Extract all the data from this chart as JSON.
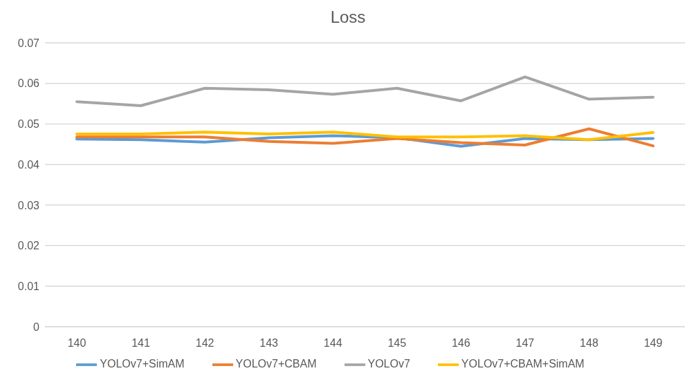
{
  "chart_data": {
    "type": "line",
    "title": "Loss",
    "categories": [
      "140",
      "141",
      "142",
      "143",
      "144",
      "145",
      "146",
      "147",
      "148",
      "149"
    ],
    "series": [
      {
        "name": "YOLOv7+SimAM",
        "color": "#5b9bd5",
        "values": [
          0.0463,
          0.0461,
          0.0455,
          0.0466,
          0.0471,
          0.0466,
          0.0445,
          0.0464,
          0.0461,
          0.0464
        ]
      },
      {
        "name": "YOLOv7+CBAM",
        "color": "#ed7d31",
        "values": [
          0.0468,
          0.0468,
          0.0468,
          0.0457,
          0.0452,
          0.0464,
          0.0454,
          0.0448,
          0.0488,
          0.0446
        ]
      },
      {
        "name": "YOLOv7",
        "color": "#a5a5a5",
        "values": [
          0.0555,
          0.0545,
          0.0588,
          0.0584,
          0.0573,
          0.0588,
          0.0557,
          0.0616,
          0.0561,
          0.0566
        ]
      },
      {
        "name": "YOLOv7+CBAM+SimAM",
        "color": "#ffc000",
        "values": [
          0.0475,
          0.0475,
          0.048,
          0.0475,
          0.048,
          0.0468,
          0.0468,
          0.0471,
          0.0461,
          0.0479
        ]
      }
    ],
    "ylim": [
      0,
      0.07
    ],
    "yticks": [
      0,
      0.01,
      0.02,
      0.03,
      0.04,
      0.05,
      0.06,
      0.07
    ],
    "grid": "y",
    "legend": "bottom",
    "marker": "none",
    "line_style": "solid"
  }
}
